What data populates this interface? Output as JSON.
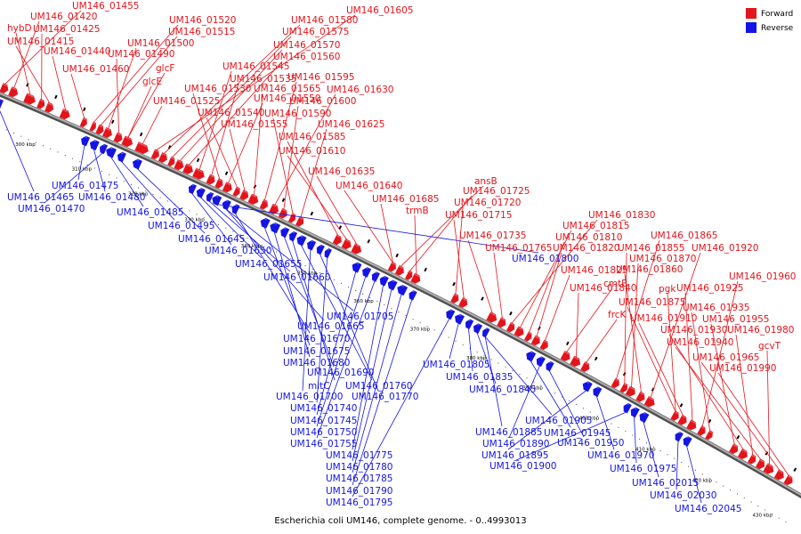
{
  "caption": "Escherichia coli UM146, complete genome. - 0..4993013",
  "legend": [
    {
      "label": "Forward",
      "color": "#e4141b"
    },
    {
      "label": "Reverse",
      "color": "#1414e4"
    }
  ],
  "colors": {
    "forward": "#e4141b",
    "reverse": "#1414e4",
    "backbone": "#808080"
  },
  "ticks": [
    "300 kbp",
    "310 kbp",
    "320 kbp",
    "330 kbp",
    "340 kbp",
    "350 kbp",
    "360 kbp",
    "370 kbp",
    "380 kbp",
    "390 kbp",
    "400 kbp",
    "410 kbp",
    "420 kbp",
    "430 kbp"
  ],
  "forward_labels": [
    "UM146_01455",
    "UM146_01420",
    "hybD",
    "UM146_01425",
    "UM146_01415",
    "UM146_01440",
    "UM146_01460",
    "UM146_01520",
    "UM146_01515",
    "UM146_01500",
    "UM146_01490",
    "glcF",
    "glcE",
    "UM146_01525",
    "UM146_01605",
    "UM146_01580",
    "UM146_01575",
    "UM146_01570",
    "UM146_01560",
    "UM146_01545",
    "UM146_01535",
    "UM146_01530",
    "UM146_01550",
    "UM146_01540",
    "UM146_01555",
    "UM146_01565",
    "UM146_01595",
    "UM146_01630",
    "UM146_01600",
    "UM146_01590",
    "UM146_01625",
    "UM146_01585",
    "UM146_01610",
    "UM146_01635",
    "UM146_01640",
    "UM146_01685",
    "ansB",
    "UM146_01725",
    "trmB",
    "UM146_01720",
    "UM146_01715",
    "UM146_01735",
    "UM146_01765",
    "UM146_01830",
    "UM146_01815",
    "UM146_01810",
    "UM146_01820",
    "UM146_01825",
    "cmtB",
    "UM146_01840",
    "frcK",
    "UM146_01865",
    "UM146_01855",
    "UM146_01870",
    "UM146_01860",
    "UM146_01920",
    "UM146_01875",
    "pgk",
    "UM146_01910",
    "UM146_01925",
    "UM146_01960",
    "UM146_01935",
    "UM146_01955",
    "UM146_01930",
    "UM146_01980",
    "UM146_01940",
    "gcvT",
    "UM146_01965",
    "UM146_01990"
  ],
  "reverse_labels": [
    "UM146_01465",
    "UM146_01475",
    "UM146_01480",
    "UM146_01470",
    "UM146_01485",
    "UM146_01495",
    "UM146_01645",
    "UM146_01650",
    "UM146_01655",
    "UM146_01660",
    "UM146_01800",
    "UM146_01705",
    "UM146_01665",
    "UM146_01670",
    "UM146_01675",
    "UM146_01680",
    "UM146_01690",
    "mltC",
    "UM146_01760",
    "UM146_01700",
    "UM146_01770",
    "UM146_01740",
    "UM146_01745",
    "UM146_01750",
    "UM146_01755",
    "UM146_01775",
    "UM146_01780",
    "UM146_01785",
    "UM146_01790",
    "UM146_01795",
    "UM146_01805",
    "UM146_01835",
    "UM146_01845",
    "UM146_01905",
    "UM146_01885",
    "UM146_01945",
    "UM146_01890",
    "UM146_01950",
    "UM146_01895",
    "UM146_01970",
    "UM146_01900",
    "UM146_01975",
    "UM146_02015",
    "UM146_02030",
    "UM146_02045"
  ]
}
